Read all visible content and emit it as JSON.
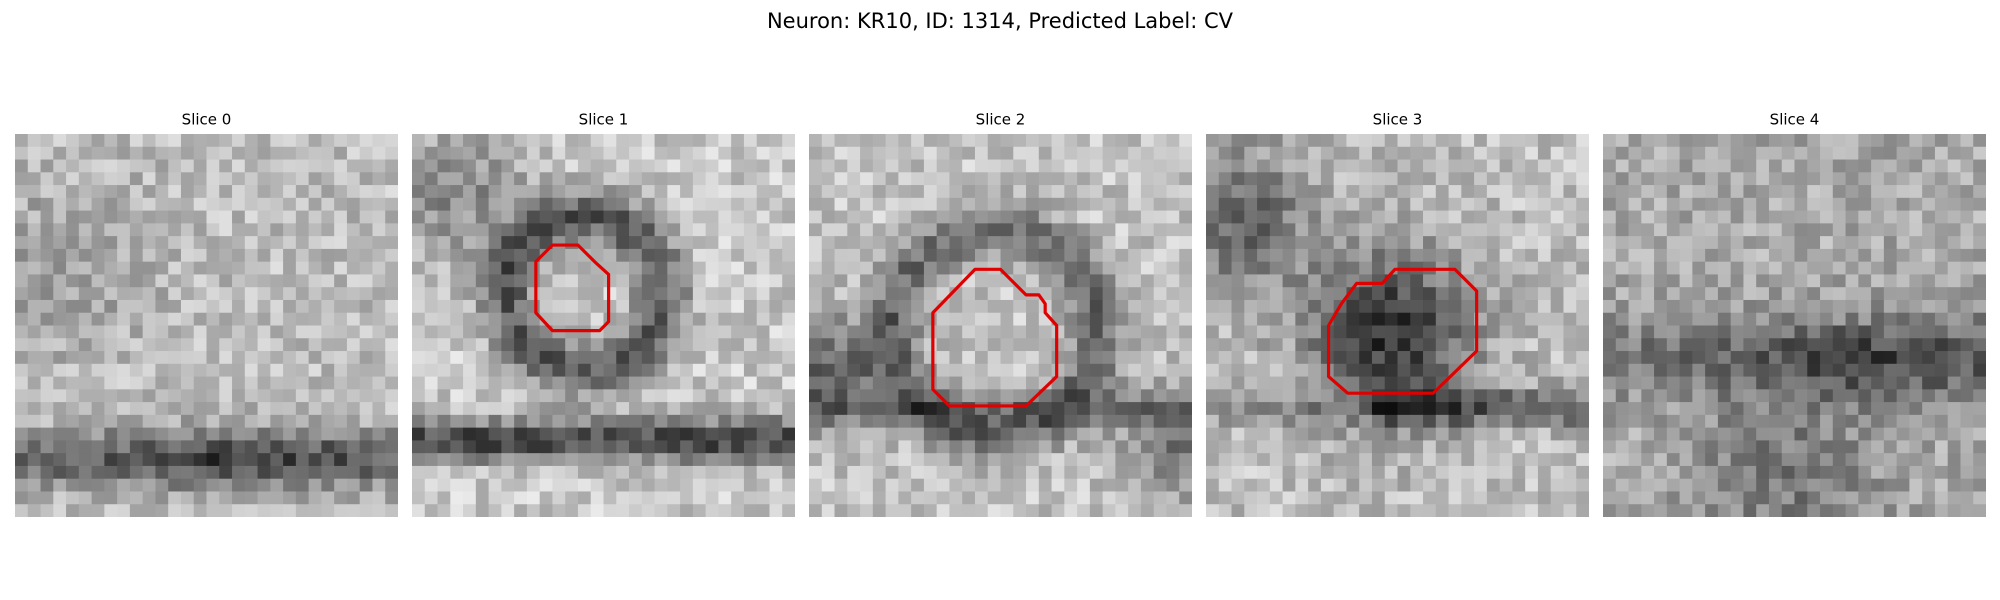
{
  "header": {
    "title": "Neuron: KR10, ID: 1314, Predicted Label: CV"
  },
  "panels": [
    {
      "title": "Slice 0"
    },
    {
      "title": "Slice 1"
    },
    {
      "title": "Slice 2"
    },
    {
      "title": "Slice 3"
    },
    {
      "title": "Slice 4"
    }
  ]
}
